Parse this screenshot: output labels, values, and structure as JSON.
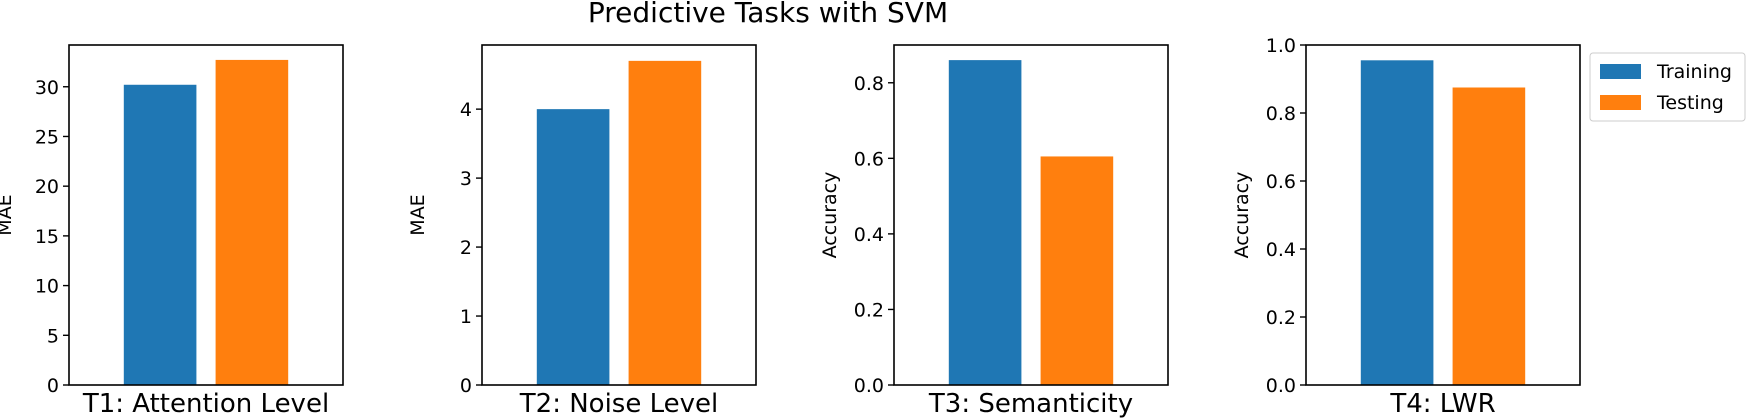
{
  "figure": {
    "title": "Predictive Tasks with SVM"
  },
  "legend": {
    "placement": "right",
    "items": [
      {
        "label": "Training",
        "color": "#1f77b4"
      },
      {
        "label": "Testing",
        "color": "#ff7f0e"
      }
    ]
  },
  "chart_data": [
    {
      "type": "bar",
      "title": "T1: Attention Level",
      "ylabel": "MAE",
      "categories": [
        "Training",
        "Testing"
      ],
      "values": [
        30.2,
        32.7
      ],
      "colors": [
        "#1f77b4",
        "#ff7f0e"
      ],
      "ylim": [
        0,
        34.2
      ],
      "yticks": [
        0,
        5,
        10,
        15,
        20,
        25,
        30
      ],
      "ytick_labels": [
        "0",
        "5",
        "10",
        "15",
        "20",
        "25",
        "30"
      ]
    },
    {
      "type": "bar",
      "title": "T2: Noise Level",
      "ylabel": "MAE",
      "categories": [
        "Training",
        "Testing"
      ],
      "values": [
        4.0,
        4.7
      ],
      "colors": [
        "#1f77b4",
        "#ff7f0e"
      ],
      "ylim": [
        0,
        4.93
      ],
      "yticks": [
        0,
        1,
        2,
        3,
        4
      ],
      "ytick_labels": [
        "0",
        "1",
        "2",
        "3",
        "4"
      ]
    },
    {
      "type": "bar",
      "title": "T3: Semanticity",
      "ylabel": "Accuracy",
      "categories": [
        "Training",
        "Testing"
      ],
      "values": [
        0.86,
        0.605
      ],
      "colors": [
        "#1f77b4",
        "#ff7f0e"
      ],
      "ylim": [
        0,
        0.9
      ],
      "yticks": [
        0,
        0.2,
        0.4,
        0.6,
        0.8
      ],
      "ytick_labels": [
        "0.0",
        "0.2",
        "0.4",
        "0.6",
        "0.8"
      ]
    },
    {
      "type": "bar",
      "title": "T4: LWR",
      "ylabel": "Accuracy",
      "categories": [
        "Training",
        "Testing"
      ],
      "values": [
        0.955,
        0.875
      ],
      "colors": [
        "#1f77b4",
        "#ff7f0e"
      ],
      "ylim": [
        0,
        1.0
      ],
      "yticks": [
        0,
        0.2,
        0.4,
        0.6,
        0.8,
        1.0
      ],
      "ytick_labels": [
        "0.0",
        "0.2",
        "0.4",
        "0.6",
        "0.8",
        "1.0"
      ]
    }
  ]
}
